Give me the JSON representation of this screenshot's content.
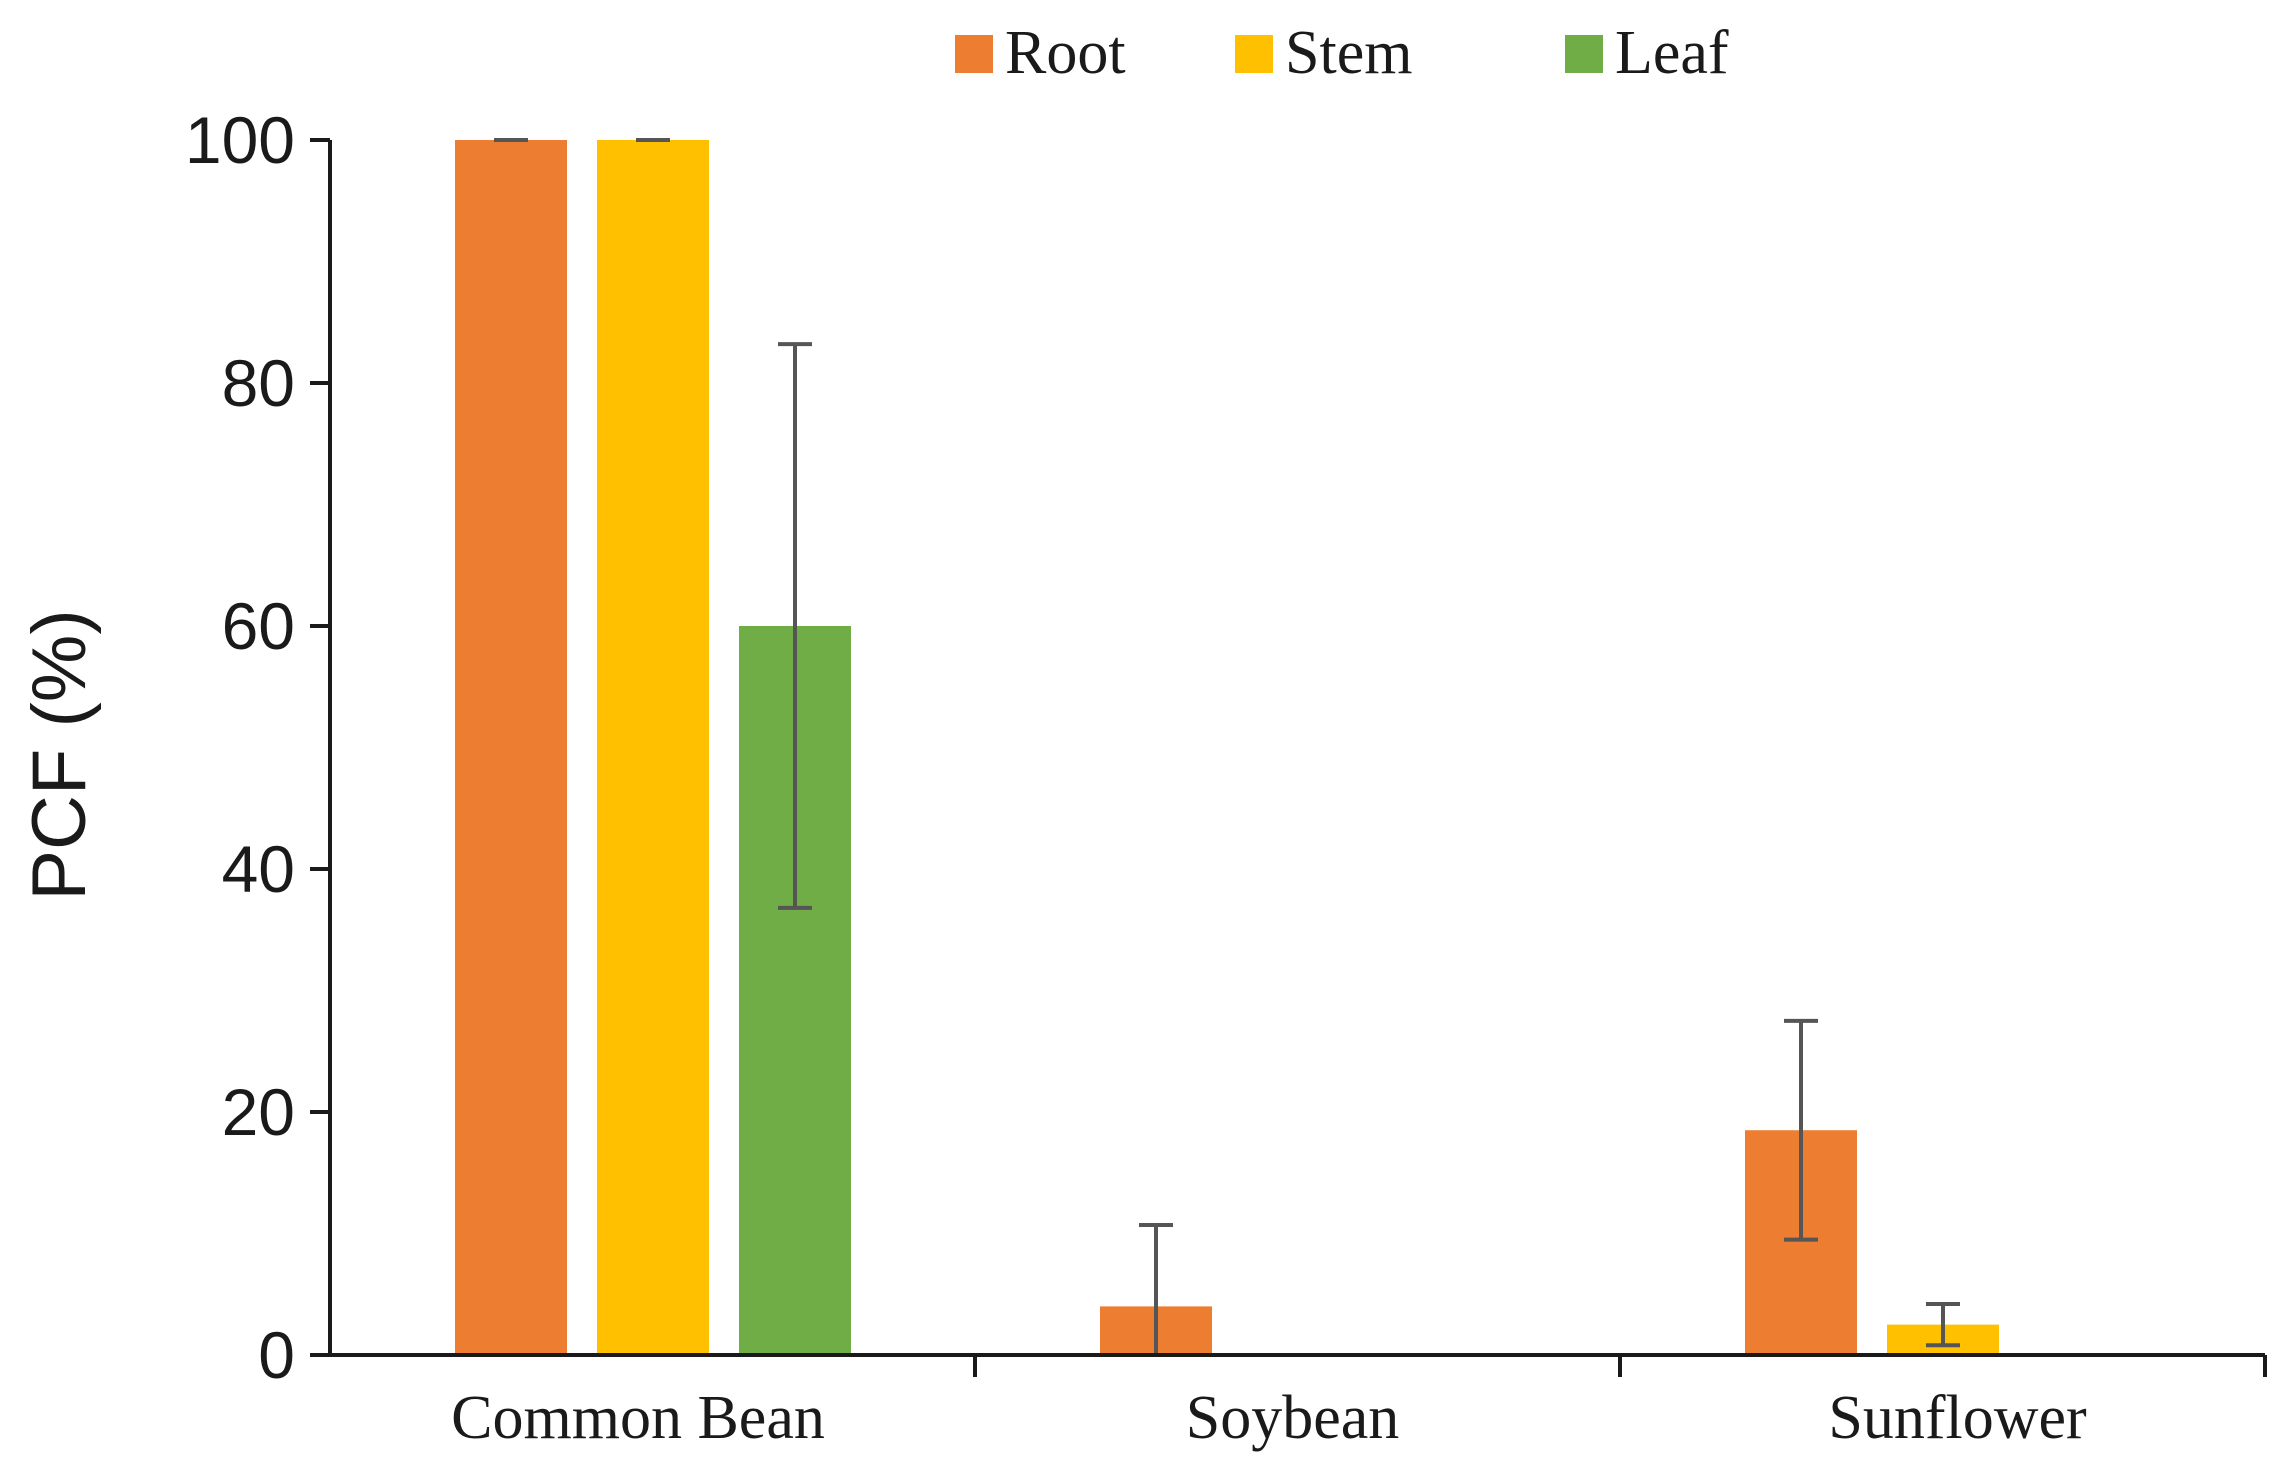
{
  "chart_data": {
    "type": "bar",
    "title": "",
    "xlabel": "",
    "ylabel": "PCF (%)",
    "ylim": [
      0,
      100
    ],
    "yticks": [
      0,
      20,
      40,
      60,
      80,
      100
    ],
    "grid": false,
    "legend_position": "top",
    "categories": [
      "Common Bean",
      "Soybean",
      "Sunflower"
    ],
    "series": [
      {
        "name": "Root",
        "color": "#ED7D31",
        "values": [
          100,
          4,
          18.5
        ],
        "error": [
          0,
          6.7,
          9
        ]
      },
      {
        "name": "Stem",
        "color": "#FFC000",
        "values": [
          100,
          0,
          2.5
        ],
        "error": [
          0,
          0,
          1.7
        ]
      },
      {
        "name": "Leaf",
        "color": "#70AD47",
        "values": [
          60,
          0,
          0
        ],
        "error": [
          23.2,
          0,
          0
        ]
      }
    ]
  }
}
